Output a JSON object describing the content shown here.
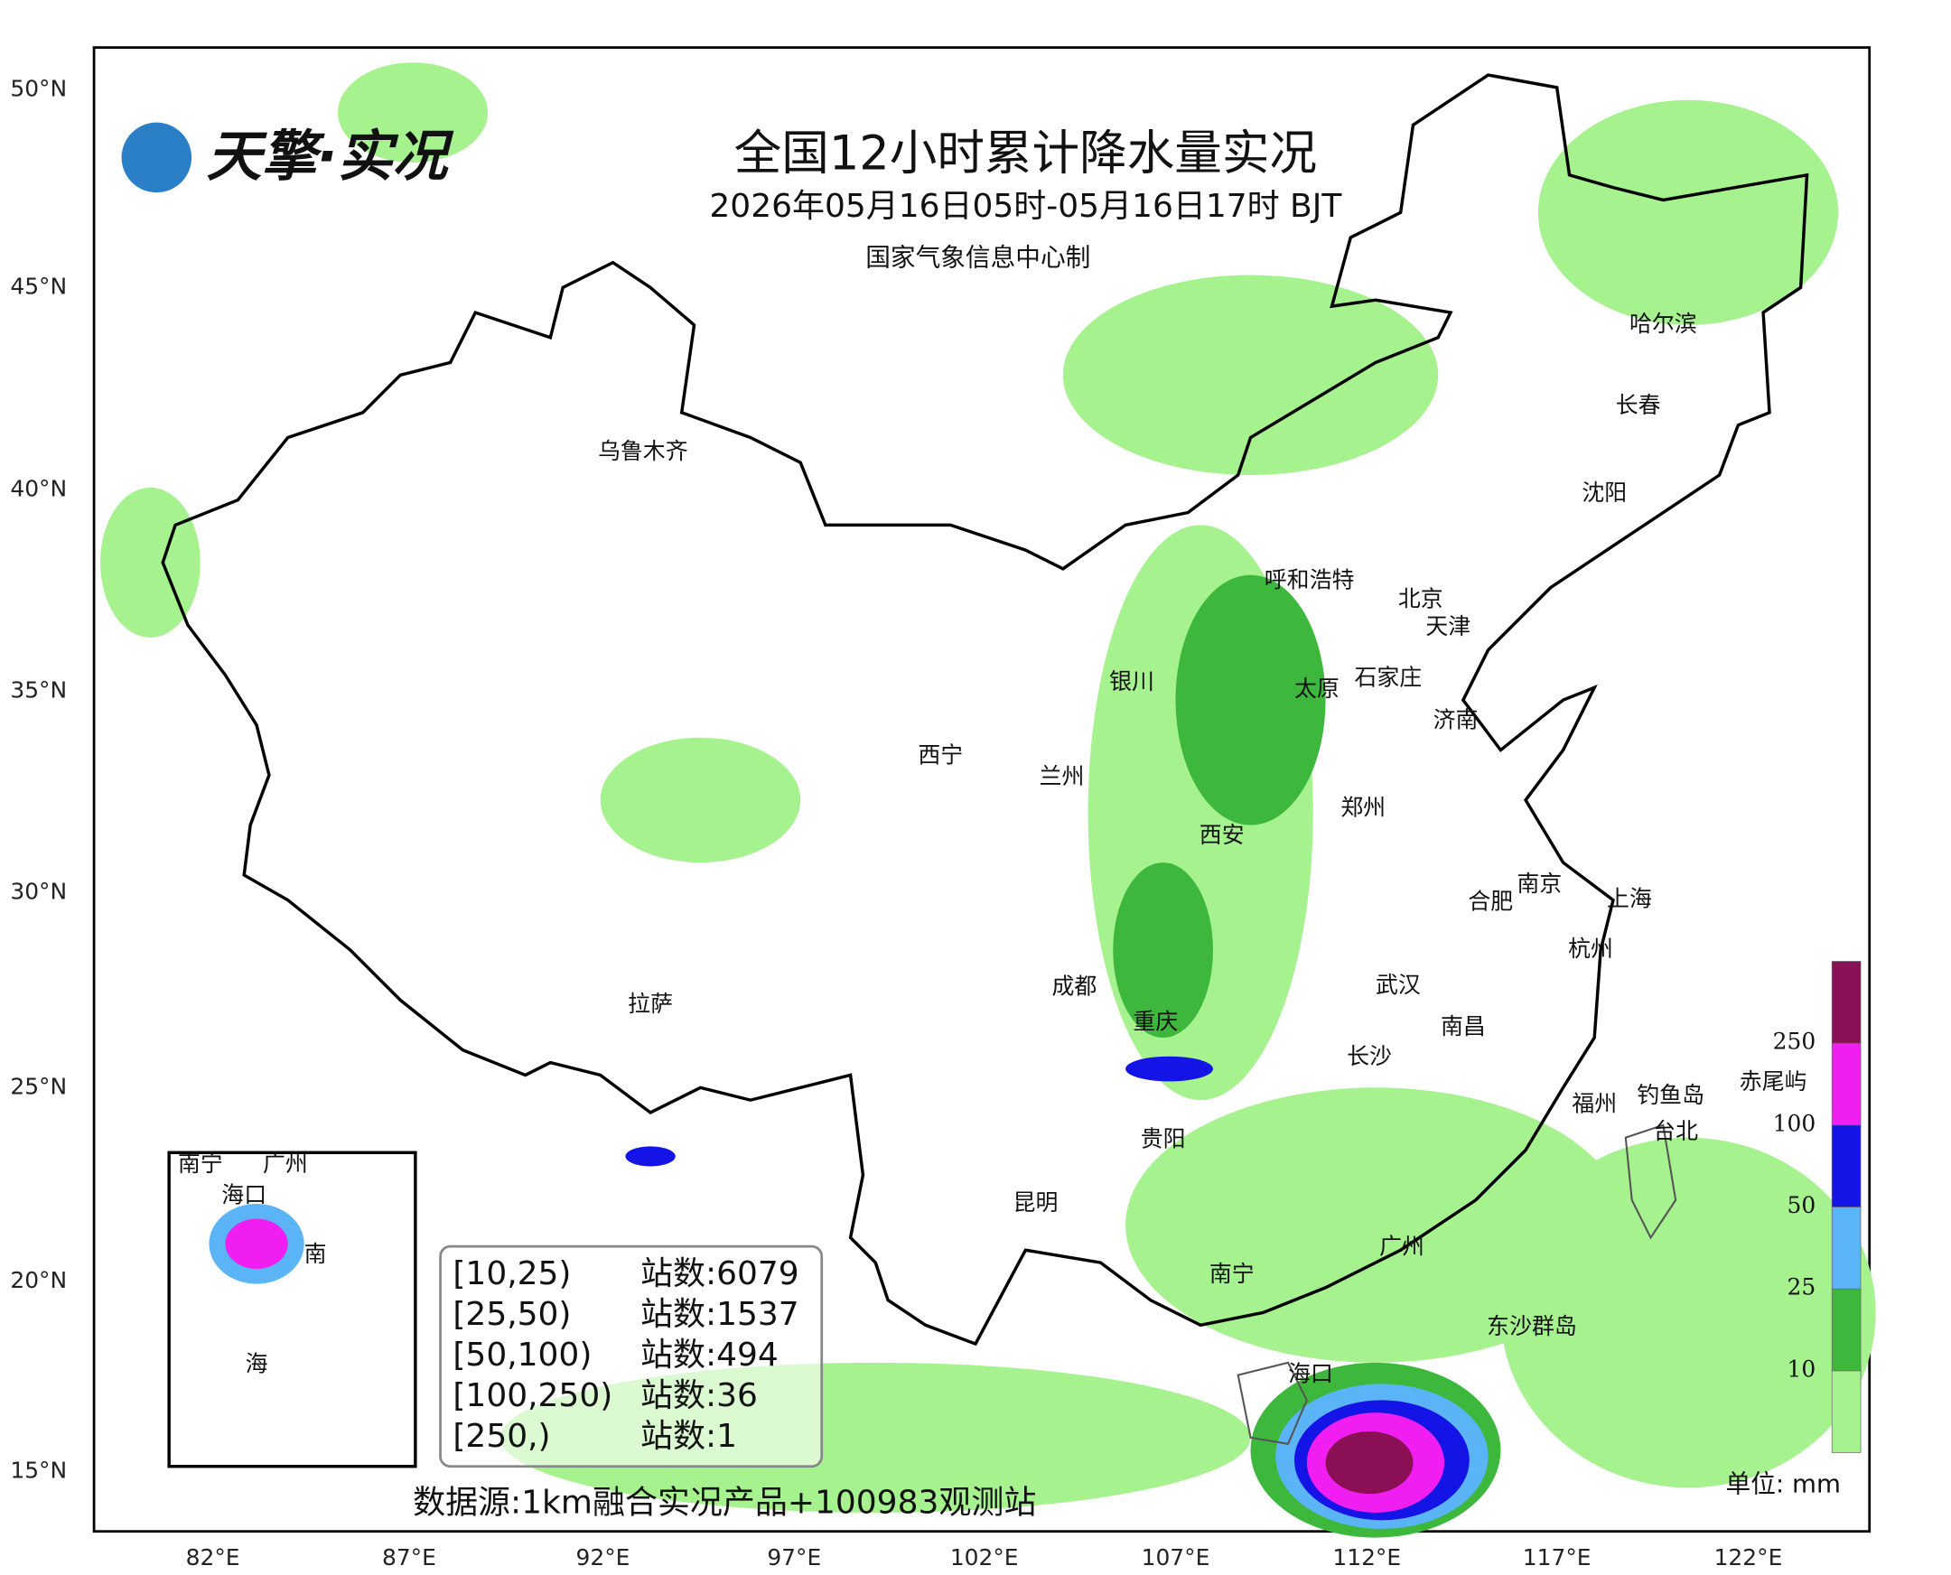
{
  "header": {
    "logo": "天擎·实况",
    "title": "全国12小时累计降水量实况",
    "subtitle": "2026年05月16日05时-05月16日17时 BJT",
    "producer": "国家气象信息中心制"
  },
  "lat_labels": [
    "50°N",
    "45°N",
    "40°N",
    "35°N",
    "30°N",
    "25°N",
    "20°N",
    "15°N"
  ],
  "lon_labels": [
    "82°E",
    "87°E",
    "92°E",
    "97°E",
    "102°E",
    "107°E",
    "112°E",
    "117°E",
    "122°E"
  ],
  "cities": [
    "乌鲁木齐",
    "哈尔滨",
    "长春",
    "沈阳",
    "呼和浩特",
    "北京",
    "天津",
    "银川",
    "太原",
    "石家庄",
    "济南",
    "西宁",
    "兰州",
    "郑州",
    "西安",
    "南京",
    "合肥",
    "上海",
    "杭州",
    "成都",
    "武汉",
    "拉萨",
    "重庆",
    "南昌",
    "长沙",
    "福州",
    "贵阳",
    "昆明",
    "广州",
    "南宁",
    "海口"
  ],
  "islands": [
    "钓鱼岛",
    "赤尾屿",
    "台北",
    "东沙群岛"
  ],
  "inset_labels": [
    "南宁",
    "广州",
    "海口",
    "南",
    "海"
  ],
  "stats": {
    "rows": [
      [
        "[10,25)",
        "站数:6079"
      ],
      [
        "[25,50)",
        "站数:1537"
      ],
      [
        "[50,100)",
        "站数:494"
      ],
      [
        "[100,250)",
        "站数:36"
      ],
      [
        "[250,)",
        "站数:1"
      ]
    ]
  },
  "colorbar": {
    "ticks": [
      10,
      25,
      50,
      100,
      250
    ],
    "unit": "单位: mm"
  },
  "source": "数据源:1km融合实况产品+100983观测站"
}
